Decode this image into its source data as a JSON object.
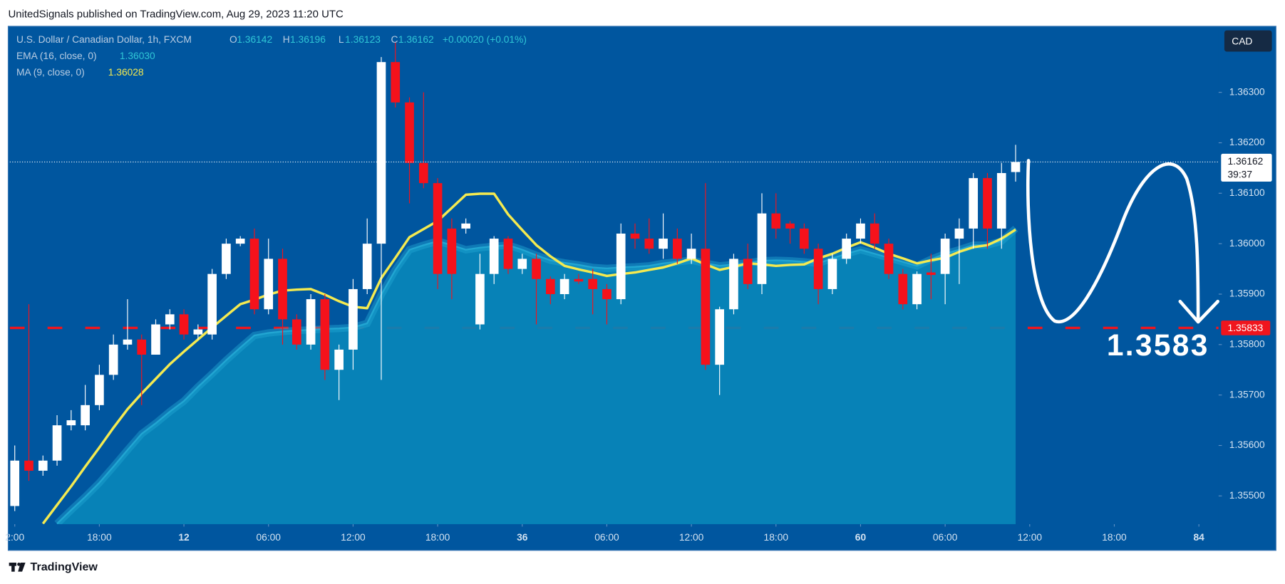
{
  "header": "UnitedSignals published on TradingView.com, Aug 29, 2023 11:20 UTC",
  "footer": "TradingView",
  "chart_data": {
    "type": "candlestick",
    "title": "U.S. Dollar / Canadian Dollar, 1h, FXCM",
    "currency": "CAD",
    "ohlc_labels": [
      "O",
      "H",
      "L",
      "C"
    ],
    "change": "+0.00020 (+0.01%)",
    "open": [
      1.3548,
      1.3557,
      1.3555,
      1.3557,
      1.3564,
      1.3564,
      1.3568,
      1.3574,
      1.358,
      1.3581,
      1.3578,
      1.3584,
      1.3586,
      1.3582,
      1.3582,
      1.3594,
      1.36,
      1.3601,
      1.3587,
      1.3597,
      1.3585,
      1.358,
      1.3589,
      1.3575,
      1.3579,
      1.3591,
      1.36,
      1.3636,
      1.3628,
      1.3616,
      1.3612,
      1.3603,
      1.3603,
      1.3584,
      1.3594,
      1.3601,
      1.3595,
      1.3597,
      1.3593,
      1.359,
      1.3593,
      1.3593,
      1.3591,
      1.3589,
      1.3602,
      1.3601,
      1.3599,
      1.3601,
      1.3597,
      1.3599,
      1.3576,
      1.3587,
      1.3597,
      1.3592,
      1.3606,
      1.3604,
      1.3603,
      1.3599,
      1.3591,
      1.3597,
      1.3601,
      1.3604,
      1.36,
      1.3594,
      1.3588,
      1.35943,
      1.3594,
      1.3601,
      1.3603,
      1.3613,
      1.3603,
      1.36142
    ],
    "high": [
      1.356,
      1.3588,
      1.3558,
      1.3566,
      1.3567,
      1.3572,
      1.3576,
      1.3582,
      1.3589,
      1.3582,
      1.3585,
      1.3587,
      1.3587,
      1.3584,
      1.3595,
      1.3601,
      1.36015,
      1.3603,
      1.3601,
      1.3599,
      1.3586,
      1.359,
      1.359,
      1.358,
      1.3593,
      1.3605,
      1.3637,
      1.364,
      1.3629,
      1.363,
      1.3613,
      1.3605,
      1.3605,
      1.3598,
      1.36015,
      1.36015,
      1.3598,
      1.3598,
      1.35935,
      1.3594,
      1.3594,
      1.3595,
      1.3592,
      1.3604,
      1.3604,
      1.3605,
      1.3606,
      1.3603,
      1.3602,
      1.3612,
      1.35875,
      1.3598,
      1.36,
      1.361,
      1.361,
      1.36045,
      1.3604,
      1.36,
      1.3598,
      1.3602,
      1.3605,
      1.3606,
      1.3601,
      1.3595,
      1.35945,
      1.3598,
      1.3602,
      1.3605,
      1.3614,
      1.3614,
      1.3616,
      1.36196
    ],
    "low": [
      1.3547,
      1.3553,
      1.3554,
      1.3556,
      1.3563,
      1.3563,
      1.3567,
      1.3573,
      1.3579,
      1.3568,
      1.3578,
      1.3583,
      1.3581,
      1.3581,
      1.3581,
      1.3593,
      1.35995,
      1.3586,
      1.3586,
      1.358,
      1.3579,
      1.3579,
      1.3573,
      1.3569,
      1.3575,
      1.359,
      1.3573,
      1.3627,
      1.3608,
      1.3611,
      1.3591,
      1.3589,
      1.3602,
      1.3583,
      1.3592,
      1.3594,
      1.3594,
      1.3584,
      1.3588,
      1.3589,
      1.3592,
      1.3586,
      1.3584,
      1.3588,
      1.3599,
      1.3598,
      1.3597,
      1.3596,
      1.3596,
      1.3575,
      1.357,
      1.3586,
      1.3591,
      1.359,
      1.3601,
      1.36,
      1.3598,
      1.3588,
      1.359,
      1.3596,
      1.36,
      1.3599,
      1.3593,
      1.3587,
      1.3587,
      1.3589,
      1.3588,
      1.3592,
      1.3599,
      1.3599,
      1.3599,
      1.36123
    ],
    "close": [
      1.3557,
      1.3555,
      1.3557,
      1.3564,
      1.3565,
      1.3568,
      1.3574,
      1.358,
      1.3581,
      1.3578,
      1.3584,
      1.3586,
      1.3582,
      1.3583,
      1.3594,
      1.36,
      1.3601,
      1.3587,
      1.3597,
      1.3585,
      1.358,
      1.3589,
      1.3575,
      1.3579,
      1.3591,
      1.36,
      1.3636,
      1.3628,
      1.3616,
      1.3612,
      1.3594,
      1.3594,
      1.3604,
      1.3594,
      1.3601,
      1.3595,
      1.3597,
      1.3593,
      1.359,
      1.3593,
      1.35925,
      1.3591,
      1.3589,
      1.3602,
      1.3601,
      1.3599,
      1.3601,
      1.3597,
      1.3599,
      1.3576,
      1.3587,
      1.3597,
      1.3592,
      1.3606,
      1.3603,
      1.3603,
      1.3599,
      1.3591,
      1.3597,
      1.3601,
      1.3604,
      1.36,
      1.3594,
      1.3588,
      1.3594,
      1.35938,
      1.3601,
      1.3603,
      1.3613,
      1.3603,
      1.3614,
      1.36162
    ],
    "up_color": "#ffffff",
    "down_color": "#f5121b",
    "series": [
      {
        "name": "EMA (16, close, 0)",
        "color": "#22a6d2",
        "fill": "#0886b8",
        "last_value_label": "1.36030",
        "values": [
          null,
          null,
          null,
          1.35445,
          1.35472,
          1.35498,
          1.35526,
          1.35558,
          1.35591,
          1.35623,
          1.35644,
          1.35667,
          1.35688,
          1.35716,
          1.35742,
          1.35769,
          1.35794,
          1.35818,
          1.35823,
          1.35826,
          1.35828,
          1.35829,
          1.35831,
          1.35832,
          1.35834,
          1.35842,
          1.35899,
          1.35948,
          1.35988,
          1.35997,
          1.36005,
          1.35997,
          1.35988,
          1.35992,
          1.35995,
          1.35997,
          1.35988,
          1.35977,
          1.35967,
          1.35962,
          1.35958,
          1.35953,
          1.35951,
          1.35953,
          1.35954,
          1.35956,
          1.35961,
          1.35964,
          1.35967,
          1.35961,
          1.35956,
          1.35959,
          1.35962,
          1.35966,
          1.35967,
          1.35966,
          1.35964,
          1.35961,
          1.35971,
          1.3598,
          1.35988,
          1.3598,
          1.35972,
          1.35964,
          1.35956,
          1.35969,
          1.3598,
          1.35988,
          1.35997,
          1.35997,
          1.36005,
          1.3603
        ]
      },
      {
        "name": "MA (9, close, 0)",
        "color": "#f4ea50",
        "last_value_label": "1.36028",
        "values": [
          null,
          null,
          1.35445,
          1.35482,
          1.35519,
          1.35558,
          1.35596,
          1.35635,
          1.35672,
          1.35703,
          1.35732,
          1.35761,
          1.35786,
          1.3581,
          1.35834,
          1.35857,
          1.3588,
          1.35889,
          1.35899,
          1.35907,
          1.35909,
          1.3591,
          1.35899,
          1.35886,
          1.35875,
          1.35872,
          1.35932,
          1.35972,
          1.36013,
          1.36029,
          1.36045,
          1.36071,
          1.36097,
          1.36099,
          1.36099,
          1.36058,
          1.36027,
          1.35997,
          1.35975,
          1.35956,
          1.35949,
          1.35943,
          1.35936,
          1.3594,
          1.35943,
          1.35948,
          1.35953,
          1.35961,
          1.35971,
          1.35959,
          1.35948,
          1.35954,
          1.35961,
          1.35959,
          1.35956,
          1.35958,
          1.35959,
          1.35971,
          1.3598,
          1.35992,
          1.36003,
          1.35992,
          1.3598,
          1.35971,
          1.35961,
          1.35967,
          1.35972,
          1.35984,
          1.35993,
          1.35997,
          1.3601,
          1.36028
        ]
      }
    ],
    "xlim": [
      -0.35,
      85.4
    ],
    "xticks": [
      {
        "value": 0,
        "label": "2:00"
      },
      {
        "value": 6,
        "label": "18:00"
      },
      12,
      {
        "value": 18,
        "label": "06:00"
      },
      {
        "value": 24,
        "label": "12:00"
      },
      {
        "value": 30,
        "label": "18:00"
      },
      36,
      {
        "value": 42,
        "label": "06:00"
      },
      {
        "value": 48,
        "label": "12:00"
      },
      {
        "value": 54,
        "label": "18:00"
      },
      60,
      {
        "value": 66,
        "label": "06:00"
      },
      {
        "value": 72,
        "label": "12:00"
      },
      {
        "value": 78,
        "label": "18:00"
      },
      84
    ],
    "ylim": [
      1.35444,
      1.36431
    ],
    "yticks": [
      {
        "value": 1.355,
        "label": "1.35500"
      },
      {
        "value": 1.356,
        "label": "1.35600"
      },
      {
        "value": 1.357,
        "label": "1.35700"
      },
      {
        "value": 1.358,
        "label": "1.35800"
      },
      {
        "value": 1.359,
        "label": "1.35900"
      },
      {
        "value": 1.36,
        "label": "1.36000"
      },
      {
        "value": 1.361,
        "label": "1.36100"
      },
      {
        "value": 1.362,
        "label": "1.36200"
      },
      {
        "value": 1.363,
        "label": "1.36300"
      }
    ],
    "last_price": 1.36162,
    "countdown": "39:37",
    "level": 1.35833,
    "level_color": "#f0151d",
    "level_annotation": "1.3583"
  }
}
